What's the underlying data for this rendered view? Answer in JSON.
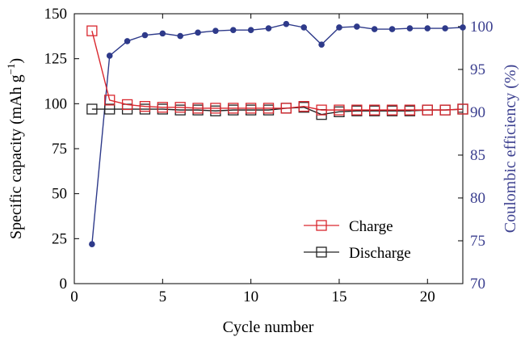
{
  "chart_data": {
    "type": "line",
    "xlabel": "Cycle number",
    "ylabel": "Specific capacity (mAh g",
    "ylabel_sup": "−1",
    "ylabel_close": ")",
    "y2label": "Coulombic efficiency (%)",
    "xlim": [
      0,
      22
    ],
    "ylim": [
      0,
      150
    ],
    "y2lim": [
      70,
      101.5
    ],
    "xticks": [
      0,
      5,
      10,
      15,
      20
    ],
    "yticks": [
      0,
      25,
      50,
      75,
      100,
      125,
      150
    ],
    "y2ticks": [
      70,
      75,
      80,
      85,
      90,
      95,
      100
    ],
    "grid": false,
    "legend_position": "lower-right",
    "series": [
      {
        "name": "Charge",
        "axis": "left",
        "color": "#d9272e",
        "marker": "square",
        "x": [
          1,
          2,
          3,
          4,
          5,
          6,
          7,
          8,
          9,
          10,
          11,
          12,
          13,
          14,
          15,
          16,
          17,
          18,
          19,
          20,
          21,
          22
        ],
        "values": [
          140.5,
          102,
          99.5,
          98.5,
          98,
          98,
          97.5,
          97.5,
          97.5,
          97.5,
          97.5,
          97.5,
          98.5,
          96.5,
          96.5,
          96.5,
          96.5,
          96.5,
          96.5,
          96.5,
          96.5,
          97
        ]
      },
      {
        "name": "Discharge",
        "axis": "left",
        "color": "#222222",
        "marker": "square",
        "x": [
          1,
          2,
          3,
          4,
          5,
          6,
          7,
          8,
          9,
          10,
          11,
          12,
          13,
          14,
          15,
          16,
          17,
          18,
          19,
          20,
          21,
          22
        ],
        "values": [
          97,
          97,
          97,
          97,
          97,
          96.5,
          96.5,
          96,
          96.5,
          96.5,
          96.5,
          97.5,
          98,
          94,
          95.5,
          96,
          96,
          96,
          96,
          96.5,
          96.5,
          97
        ]
      },
      {
        "axis": "right",
        "color": "#2e3a8a",
        "marker": "circle",
        "x": [
          1,
          2,
          3,
          4,
          5,
          6,
          7,
          8,
          9,
          10,
          11,
          12,
          13,
          14,
          15,
          16,
          17,
          18,
          19,
          20,
          21,
          22
        ],
        "values": [
          74.6,
          96.6,
          98.3,
          99.0,
          99.2,
          98.9,
          99.3,
          99.5,
          99.6,
          99.6,
          99.8,
          100.3,
          99.9,
          97.9,
          99.9,
          100.0,
          99.7,
          99.7,
          99.8,
          99.8,
          99.8,
          99.9
        ]
      }
    ]
  }
}
